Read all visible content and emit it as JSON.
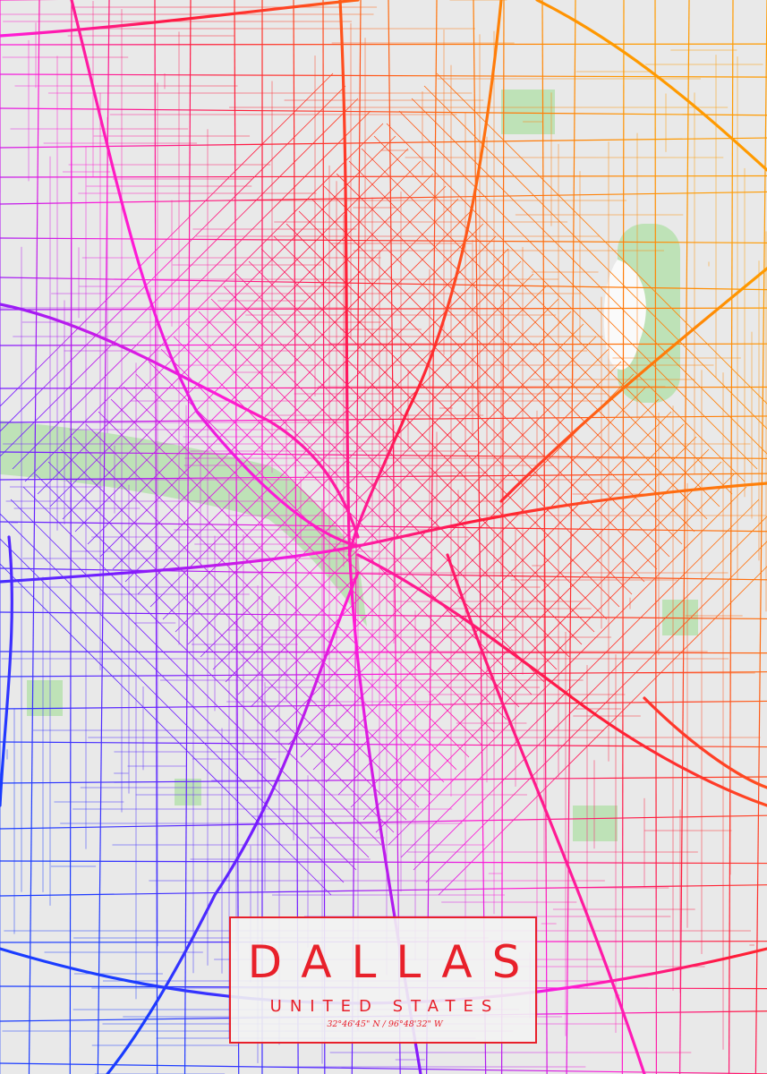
{
  "poster": {
    "title": "DALLAS",
    "subtitle": "UNITED STATES",
    "coordinates": "32°46'45\" N / 96°48'32\" W"
  }
}
